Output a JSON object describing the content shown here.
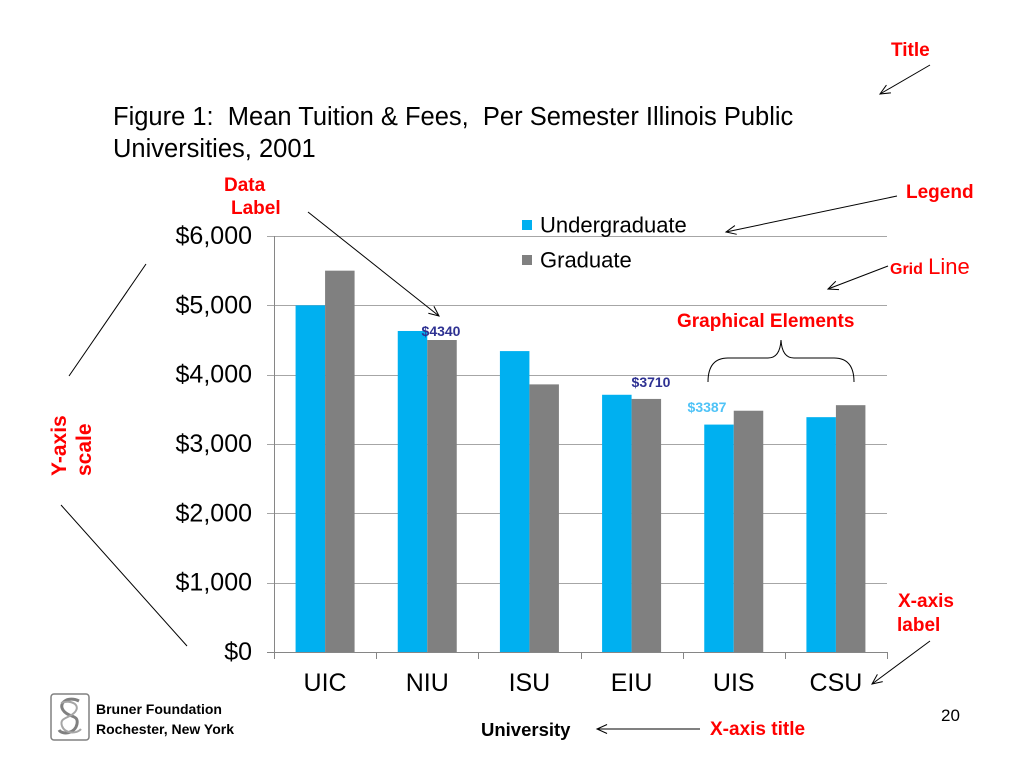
{
  "chart_data": {
    "type": "bar",
    "title": "Figure 1:  Mean Tuition & Fees,  Per Semester Illinois Public Universities, 2001",
    "xlabel": "University",
    "categories": [
      "UIC",
      "NIU",
      "ISU",
      "EIU",
      "UIS",
      "CSU"
    ],
    "series": [
      {
        "name": "Undergraduate",
        "color": "#00B0F0",
        "values": [
          5000,
          4630,
          4340,
          3710,
          3280,
          3387
        ]
      },
      {
        "name": "Graduate",
        "color": "#808080",
        "values": [
          5500,
          4500,
          3860,
          3650,
          3480,
          3560
        ]
      }
    ],
    "ylim": [
      0,
      6000
    ],
    "y_ticks": [
      {
        "value": 0,
        "label": "$0"
      },
      {
        "value": 1000,
        "label": "$1,000"
      },
      {
        "value": 2000,
        "label": "$2,000"
      },
      {
        "value": 3000,
        "label": "$3,000"
      },
      {
        "value": 4000,
        "label": "$4,000"
      },
      {
        "value": 5000,
        "label": "$5,000"
      },
      {
        "value": 6000,
        "label": "$6,000"
      }
    ],
    "grid": true,
    "legend_position": "top",
    "data_labels": [
      {
        "text": "$4340",
        "color": "#2E3192"
      },
      {
        "text": "$3710",
        "color": "#2E3192"
      },
      {
        "text": "$3387",
        "color": "#4FC3F7"
      }
    ]
  },
  "annotations": {
    "color": "#FF0000",
    "title": "Title",
    "data_label": {
      "line1": "Data",
      "line2": "Label"
    },
    "legend": "Legend",
    "grid_line": {
      "grid": "Grid",
      "line": "Line"
    },
    "graphical_elements": "Graphical Elements",
    "y_axis_scale": {
      "line1": "Y-axis",
      "line2": "scale"
    },
    "x_axis_label": {
      "line1": "X-axis",
      "line2": "label"
    },
    "x_axis_title": "X-axis title"
  },
  "footer": {
    "org_name": "Bruner Foundation",
    "org_location": "Rochester, New York",
    "page_number": "20"
  }
}
